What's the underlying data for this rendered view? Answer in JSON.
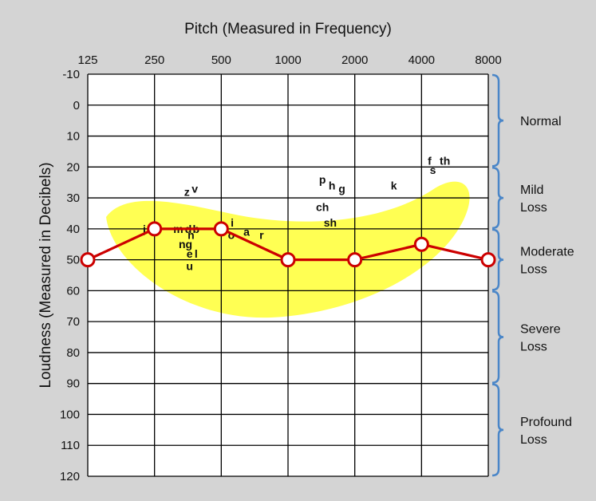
{
  "chart_data": {
    "type": "line",
    "title": "Pitch (Measured in Frequency)",
    "xlabel": "",
    "ylabel": "Loudness (Measured in Decibels)",
    "x_tick_labels": [
      "125",
      "250",
      "500",
      "1000",
      "2000",
      "4000",
      "8000"
    ],
    "y_tick_labels": [
      "-10",
      "0",
      "10",
      "20",
      "30",
      "40",
      "50",
      "60",
      "70",
      "80",
      "90",
      "100",
      "110",
      "120"
    ],
    "ylim": [
      -10,
      120
    ],
    "y_inverted": true,
    "grid": true,
    "series": [
      {
        "color": "#cc0000",
        "x": [
          125,
          250,
          500,
          1000,
          2000,
          4000,
          8000
        ],
        "values": [
          50,
          40,
          40,
          50,
          50,
          45,
          50
        ]
      }
    ],
    "range_brackets": [
      {
        "label": "Normal",
        "from": -10,
        "to": 20
      },
      {
        "label": "Mild\nLoss",
        "from": 20,
        "to": 40
      },
      {
        "label": "Moderate\nLoss",
        "from": 40,
        "to": 60
      },
      {
        "label": "Severe\nLoss",
        "from": 60,
        "to": 90
      },
      {
        "label": "Profound\nLoss",
        "from": 90,
        "to": 120
      }
    ],
    "speech_sounds": [
      {
        "text": "z",
        "x": 350,
        "y": 28
      },
      {
        "text": "v",
        "x": 380,
        "y": 27
      },
      {
        "text": "j",
        "x": 225,
        "y": 40
      },
      {
        "text": "m",
        "x": 320,
        "y": 40
      },
      {
        "text": "d",
        "x": 355,
        "y": 40
      },
      {
        "text": "b",
        "x": 385,
        "y": 40
      },
      {
        "text": "n",
        "x": 365,
        "y": 42
      },
      {
        "text": "ng",
        "x": 345,
        "y": 45
      },
      {
        "text": "e",
        "x": 360,
        "y": 48
      },
      {
        "text": "l",
        "x": 385,
        "y": 48
      },
      {
        "text": "u",
        "x": 360,
        "y": 52
      },
      {
        "text": "i",
        "x": 560,
        "y": 38
      },
      {
        "text": "o",
        "x": 555,
        "y": 42
      },
      {
        "text": "a",
        "x": 650,
        "y": 41
      },
      {
        "text": "r",
        "x": 760,
        "y": 42
      },
      {
        "text": "p",
        "x": 1430,
        "y": 24
      },
      {
        "text": "h",
        "x": 1580,
        "y": 26
      },
      {
        "text": "g",
        "x": 1750,
        "y": 27
      },
      {
        "text": "ch",
        "x": 1430,
        "y": 33
      },
      {
        "text": "sh",
        "x": 1550,
        "y": 38
      },
      {
        "text": "k",
        "x": 3000,
        "y": 26
      },
      {
        "text": "f",
        "x": 4350,
        "y": 18
      },
      {
        "text": "th",
        "x": 5100,
        "y": 18
      },
      {
        "text": "s",
        "x": 4500,
        "y": 21
      }
    ],
    "colors": {
      "background": "#d4d4d4",
      "plot_bg": "#ffffff",
      "grid": "#000000",
      "line": "#cc0000",
      "banana": "#ffff44",
      "bracket": "#4a86c8"
    }
  }
}
